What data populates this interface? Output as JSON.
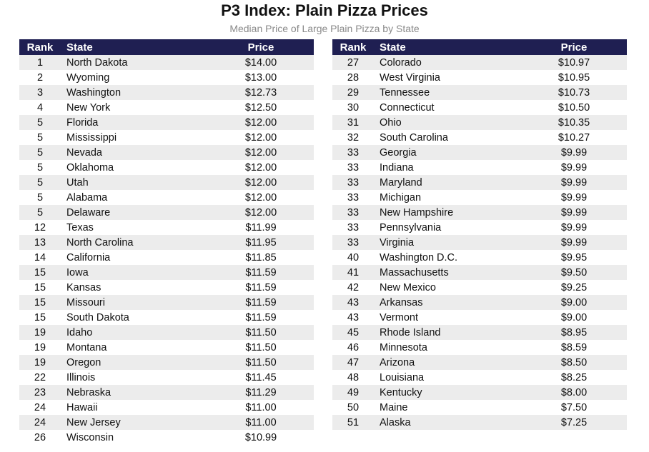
{
  "title": "P3 Index: Plain Pizza Prices",
  "subtitle": "Median Price of Large Plain Pizza by State",
  "colors": {
    "header_bg": "#1f1f52",
    "header_text": "#ffffff",
    "stripe": "#ececec"
  },
  "chart_data": {
    "type": "table",
    "title": "P3 Index: Plain Pizza Prices",
    "subtitle": "Median Price of Large Plain Pizza by State",
    "columns": [
      "Rank",
      "State",
      "Price"
    ],
    "tables": [
      {
        "rows": [
          [
            "1",
            "North Dakota",
            "$14.00"
          ],
          [
            "2",
            "Wyoming",
            "$13.00"
          ],
          [
            "3",
            "Washington",
            "$12.73"
          ],
          [
            "4",
            "New York",
            "$12.50"
          ],
          [
            "5",
            "Florida",
            "$12.00"
          ],
          [
            "5",
            "Mississippi",
            "$12.00"
          ],
          [
            "5",
            "Nevada",
            "$12.00"
          ],
          [
            "5",
            "Oklahoma",
            "$12.00"
          ],
          [
            "5",
            "Utah",
            "$12.00"
          ],
          [
            "5",
            "Alabama",
            "$12.00"
          ],
          [
            "5",
            "Delaware",
            "$12.00"
          ],
          [
            "12",
            "Texas",
            "$11.99"
          ],
          [
            "13",
            "North Carolina",
            "$11.95"
          ],
          [
            "14",
            "California",
            "$11.85"
          ],
          [
            "15",
            "Iowa",
            "$11.59"
          ],
          [
            "15",
            "Kansas",
            "$11.59"
          ],
          [
            "15",
            "Missouri",
            "$11.59"
          ],
          [
            "15",
            "South Dakota",
            "$11.59"
          ],
          [
            "19",
            "Idaho",
            "$11.50"
          ],
          [
            "19",
            "Montana",
            "$11.50"
          ],
          [
            "19",
            "Oregon",
            "$11.50"
          ],
          [
            "22",
            "Illinois",
            "$11.45"
          ],
          [
            "23",
            "Nebraska",
            "$11.29"
          ],
          [
            "24",
            "Hawaii",
            "$11.00"
          ],
          [
            "24",
            "New Jersey",
            "$11.00"
          ],
          [
            "26",
            "Wisconsin",
            "$10.99"
          ]
        ]
      },
      {
        "rows": [
          [
            "27",
            "Colorado",
            "$10.97"
          ],
          [
            "28",
            "West Virginia",
            "$10.95"
          ],
          [
            "29",
            "Tennessee",
            "$10.73"
          ],
          [
            "30",
            "Connecticut",
            "$10.50"
          ],
          [
            "31",
            "Ohio",
            "$10.35"
          ],
          [
            "32",
            "South Carolina",
            "$10.27"
          ],
          [
            "33",
            "Georgia",
            "$9.99"
          ],
          [
            "33",
            "Indiana",
            "$9.99"
          ],
          [
            "33",
            "Maryland",
            "$9.99"
          ],
          [
            "33",
            "Michigan",
            "$9.99"
          ],
          [
            "33",
            "New Hampshire",
            "$9.99"
          ],
          [
            "33",
            "Pennsylvania",
            "$9.99"
          ],
          [
            "33",
            "Virginia",
            "$9.99"
          ],
          [
            "40",
            "Washington D.C.",
            "$9.95"
          ],
          [
            "41",
            "Massachusetts",
            "$9.50"
          ],
          [
            "42",
            "New Mexico",
            "$9.25"
          ],
          [
            "43",
            "Arkansas",
            "$9.00"
          ],
          [
            "43",
            "Vermont",
            "$9.00"
          ],
          [
            "45",
            "Rhode Island",
            "$8.95"
          ],
          [
            "46",
            "Minnesota",
            "$8.59"
          ],
          [
            "47",
            "Arizona",
            "$8.50"
          ],
          [
            "48",
            "Louisiana",
            "$8.25"
          ],
          [
            "49",
            "Kentucky",
            "$8.00"
          ],
          [
            "50",
            "Maine",
            "$7.50"
          ],
          [
            "51",
            "Alaska",
            "$7.25"
          ]
        ]
      }
    ]
  }
}
